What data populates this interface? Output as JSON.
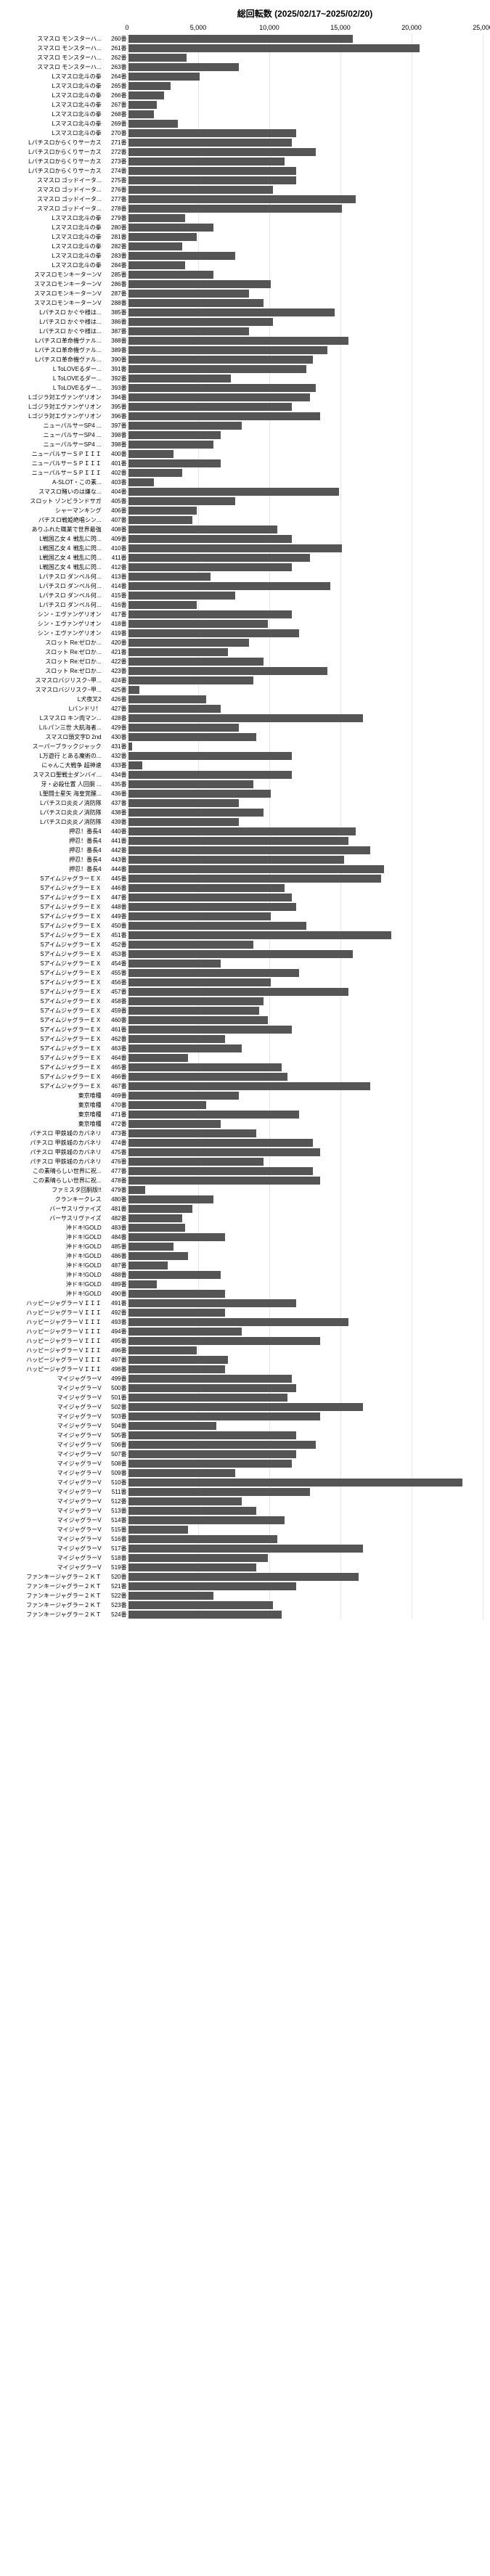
{
  "chart": {
    "type": "bar-horizontal",
    "title": "総回転数 (2025/02/17~2025/02/20)",
    "x_axis": {
      "min": 0,
      "max": 25000,
      "ticks": [
        0,
        5000,
        10000,
        15000,
        20000,
        25000
      ],
      "tick_labels": [
        "0",
        "5,000",
        "10,000",
        "15,000",
        "20,000",
        "25,000"
      ]
    },
    "bar_color": "#555555",
    "grid_color": "#e5e5e5",
    "background_color": "#ffffff",
    "label_fontsize": 8,
    "rows": [
      {
        "label": "スマスロ モンスターハ...",
        "num": "260番",
        "value": 15800
      },
      {
        "label": "スマスロ モンスターハ...",
        "num": "261番",
        "value": 20500
      },
      {
        "label": "スマスロ モンスターハ...",
        "num": "262番",
        "value": 4100
      },
      {
        "label": "スマスロ モンスターハ...",
        "num": "263番",
        "value": 7800
      },
      {
        "label": "Lスマスロ北斗の拳",
        "num": "264番",
        "value": 5000
      },
      {
        "label": "Lスマスロ北斗の拳",
        "num": "265番",
        "value": 3000
      },
      {
        "label": "Lスマスロ北斗の拳",
        "num": "266番",
        "value": 2500
      },
      {
        "label": "Lスマスロ北斗の拳",
        "num": "267番",
        "value": 2000
      },
      {
        "label": "Lスマスロ北斗の拳",
        "num": "268番",
        "value": 1800
      },
      {
        "label": "Lスマスロ北斗の拳",
        "num": "269番",
        "value": 3500
      },
      {
        "label": "Lスマスロ北斗の拳",
        "num": "270番",
        "value": 11800
      },
      {
        "label": "Lパチスロからくりサーカス",
        "num": "271番",
        "value": 11500
      },
      {
        "label": "Lパチスロからくりサーカス",
        "num": "272番",
        "value": 13200
      },
      {
        "label": "Lパチスロからくりサーカス",
        "num": "273番",
        "value": 11000
      },
      {
        "label": "Lパチスロからくりサーカス",
        "num": "274番",
        "value": 11800
      },
      {
        "label": "スマスロ ゴッドイータ...",
        "num": "275番",
        "value": 11800
      },
      {
        "label": "スマスロ ゴッドイータ...",
        "num": "276番",
        "value": 10200
      },
      {
        "label": "スマスロ ゴッドイータ...",
        "num": "277番",
        "value": 16000
      },
      {
        "label": "スマスロ ゴッドイータ...",
        "num": "278番",
        "value": 15000
      },
      {
        "label": "Lスマスロ北斗の拳",
        "num": "279番",
        "value": 4000
      },
      {
        "label": "Lスマスロ北斗の拳",
        "num": "280番",
        "value": 6000
      },
      {
        "label": "Lスマスロ北斗の拳",
        "num": "281番",
        "value": 4800
      },
      {
        "label": "Lスマスロ北斗の拳",
        "num": "282番",
        "value": 3800
      },
      {
        "label": "Lスマスロ北斗の拳",
        "num": "283番",
        "value": 7500
      },
      {
        "label": "Lスマスロ北斗の拳",
        "num": "284番",
        "value": 4000
      },
      {
        "label": "スマスロモンキーターンV",
        "num": "285番",
        "value": 6000
      },
      {
        "label": "スマスロモンキーターンV",
        "num": "286番",
        "value": 10000
      },
      {
        "label": "スマスロモンキーターンV",
        "num": "287番",
        "value": 8500
      },
      {
        "label": "スマスロモンキーターンV",
        "num": "288番",
        "value": 9500
      },
      {
        "label": "Lパチスロ かぐや様は...",
        "num": "385番",
        "value": 14500
      },
      {
        "label": "Lパチスロ かぐや様は...",
        "num": "386番",
        "value": 10200
      },
      {
        "label": "Lパチスロ かぐや様は...",
        "num": "387番",
        "value": 8500
      },
      {
        "label": "Lパチスロ革命機ヴァル...",
        "num": "388番",
        "value": 15500
      },
      {
        "label": "Lパチスロ革命機ヴァル...",
        "num": "389番",
        "value": 14000
      },
      {
        "label": "Lパチスロ革命機ヴァル...",
        "num": "390番",
        "value": 13000
      },
      {
        "label": "L ToLOVEるダー...",
        "num": "391番",
        "value": 12500
      },
      {
        "label": "L ToLOVEるダー...",
        "num": "392番",
        "value": 7200
      },
      {
        "label": "L ToLOVEるダー...",
        "num": "393番",
        "value": 13200
      },
      {
        "label": "Lゴジラ対エヴァンゲリオン",
        "num": "394番",
        "value": 12800
      },
      {
        "label": "Lゴジラ対エヴァンゲリオン",
        "num": "395番",
        "value": 11500
      },
      {
        "label": "Lゴジラ対エヴァンゲリオン",
        "num": "396番",
        "value": 13500
      },
      {
        "label": "ニューパルサーSP4 ...",
        "num": "397番",
        "value": 8000
      },
      {
        "label": "ニューパルサーSP4 ...",
        "num": "398番",
        "value": 6500
      },
      {
        "label": "ニューパルサーSP4 ...",
        "num": "398番",
        "value": 6000
      },
      {
        "label": "ニューパルサーＳＰＩＩＩ",
        "num": "400番",
        "value": 3200
      },
      {
        "label": "ニューパルサーＳＰＩＩＩ",
        "num": "401番",
        "value": 6500
      },
      {
        "label": "ニューパルサーＳＰＩＩＩ",
        "num": "402番",
        "value": 3800
      },
      {
        "label": "A-SLOT・この素...",
        "num": "403番",
        "value": 1800
      },
      {
        "label": "スマスロ賭いのは嫌な...",
        "num": "404番",
        "value": 14800
      },
      {
        "label": "スロット ゾンビランドサガ",
        "num": "405番",
        "value": 7500
      },
      {
        "label": "シャーマンキング",
        "num": "406番",
        "value": 4800
      },
      {
        "label": "パチスロ戦姫絶唱シン...",
        "num": "407番",
        "value": 4500
      },
      {
        "label": "ありふれた職業で世界最強",
        "num": "408番",
        "value": 10500
      },
      {
        "label": "L戦国乙女４ 戦乱に閃...",
        "num": "409番",
        "value": 11500
      },
      {
        "label": "L戦国乙女４ 戦乱に閃...",
        "num": "410番",
        "value": 15000
      },
      {
        "label": "L戦国乙女４ 戦乱に閃...",
        "num": "411番",
        "value": 12800
      },
      {
        "label": "L戦国乙女４ 戦乱に閃...",
        "num": "412番",
        "value": 11500
      },
      {
        "label": "Lパチスロ ダンベル何...",
        "num": "413番",
        "value": 5800
      },
      {
        "label": "Lパチスロ ダンベル何...",
        "num": "414番",
        "value": 14200
      },
      {
        "label": "Lパチスロ ダンベル何...",
        "num": "415番",
        "value": 7500
      },
      {
        "label": "Lパチスロ ダンベル何...",
        "num": "416番",
        "value": 4800
      },
      {
        "label": "シン・エヴァンゲリオン",
        "num": "417番",
        "value": 11500
      },
      {
        "label": "シン・エヴァンゲリオン",
        "num": "418番",
        "value": 9800
      },
      {
        "label": "シン・エヴァンゲリオン",
        "num": "419番",
        "value": 12000
      },
      {
        "label": "スロット Re:ゼロか...",
        "num": "420番",
        "value": 8500
      },
      {
        "label": "スロット Re:ゼロか...",
        "num": "421番",
        "value": 7000
      },
      {
        "label": "スロット Re:ゼロか...",
        "num": "422番",
        "value": 9500
      },
      {
        "label": "スロット Re:ゼロか...",
        "num": "423番",
        "value": 14000
      },
      {
        "label": "スマスロバジリスク~甲...",
        "num": "424番",
        "value": 8800
      },
      {
        "label": "スマスロバジリスク~甲...",
        "num": "425番",
        "value": 800
      },
      {
        "label": "L犬夜叉2",
        "num": "426番",
        "value": 5500
      },
      {
        "label": "Lバンドリ！",
        "num": "427番",
        "value": 6500
      },
      {
        "label": "Lスマスロ キン肉マン...",
        "num": "428番",
        "value": 16500
      },
      {
        "label": "Lルパン三世 大航海者...",
        "num": "429番",
        "value": 7800
      },
      {
        "label": "スマスロ頭文字D 2nd",
        "num": "430番",
        "value": 9000
      },
      {
        "label": "スーパーブラックジャック",
        "num": "431番",
        "value": 300
      },
      {
        "label": "L万遊行 とある魔術の...",
        "num": "432番",
        "value": 11500
      },
      {
        "label": "にゃんこ大戦争 超神速",
        "num": "433番",
        "value": 1000
      },
      {
        "label": "スマスロ聖戦士ダンバイ...",
        "num": "434番",
        "value": 11500
      },
      {
        "label": "牙・必殺仕置 人回胴 ...",
        "num": "435番",
        "value": 8800
      },
      {
        "label": "L聖闘士星矢 海皇覚醒...",
        "num": "436番",
        "value": 10000
      },
      {
        "label": "Lパチスロ炎炎ノ消防隊",
        "num": "437番",
        "value": 7800
      },
      {
        "label": "Lパチスロ炎炎ノ消防隊",
        "num": "438番",
        "value": 9500
      },
      {
        "label": "Lパチスロ炎炎ノ消防隊",
        "num": "439番",
        "value": 7800
      },
      {
        "label": "押忍！番長4",
        "num": "440番",
        "value": 16000
      },
      {
        "label": "押忍！番長4",
        "num": "441番",
        "value": 15500
      },
      {
        "label": "押忍！番長4",
        "num": "442番",
        "value": 17000
      },
      {
        "label": "押忍！番長4",
        "num": "443番",
        "value": 15200
      },
      {
        "label": "押忍！番長4",
        "num": "444番",
        "value": 18000
      },
      {
        "label": "SアイムジャグラーＥＸ",
        "num": "445番",
        "value": 17800
      },
      {
        "label": "SアイムジャグラーＥＸ",
        "num": "446番",
        "value": 11000
      },
      {
        "label": "SアイムジャグラーＥＸ",
        "num": "447番",
        "value": 11500
      },
      {
        "label": "SアイムジャグラーＥＸ",
        "num": "448番",
        "value": 11800
      },
      {
        "label": "SアイムジャグラーＥＸ",
        "num": "449番",
        "value": 10000
      },
      {
        "label": "SアイムジャグラーＥＸ",
        "num": "450番",
        "value": 12500
      },
      {
        "label": "SアイムジャグラーＥＸ",
        "num": "451番",
        "value": 18500
      },
      {
        "label": "SアイムジャグラーＥＸ",
        "num": "452番",
        "value": 8800
      },
      {
        "label": "SアイムジャグラーＥＸ",
        "num": "453番",
        "value": 15800
      },
      {
        "label": "SアイムジャグラーＥＸ",
        "num": "454番",
        "value": 6500
      },
      {
        "label": "SアイムジャグラーＥＸ",
        "num": "455番",
        "value": 12000
      },
      {
        "label": "SアイムジャグラーＥＸ",
        "num": "456番",
        "value": 10000
      },
      {
        "label": "SアイムジャグラーＥＸ",
        "num": "457番",
        "value": 15500
      },
      {
        "label": "SアイムジャグラーＥＸ",
        "num": "458番",
        "value": 9500
      },
      {
        "label": "SアイムジャグラーＥＸ",
        "num": "459番",
        "value": 9200
      },
      {
        "label": "SアイムジャグラーＥＸ",
        "num": "460番",
        "value": 9800
      },
      {
        "label": "SアイムジャグラーＥＸ",
        "num": "461番",
        "value": 11500
      },
      {
        "label": "SアイムジャグラーＥＸ",
        "num": "462番",
        "value": 6800
      },
      {
        "label": "SアイムジャグラーＥＸ",
        "num": "463番",
        "value": 8000
      },
      {
        "label": "SアイムジャグラーＥＸ",
        "num": "464番",
        "value": 4200
      },
      {
        "label": "SアイムジャグラーＥＸ",
        "num": "465番",
        "value": 10800
      },
      {
        "label": "SアイムジャグラーＥＸ",
        "num": "466番",
        "value": 11200
      },
      {
        "label": "SアイムジャグラーＥＸ",
        "num": "467番",
        "value": 17000
      },
      {
        "label": "東京喰種",
        "num": "469番",
        "value": 7800
      },
      {
        "label": "東京喰種",
        "num": "470番",
        "value": 5500
      },
      {
        "label": "東京喰種",
        "num": "471番",
        "value": 12000
      },
      {
        "label": "東京喰種",
        "num": "472番",
        "value": 6500
      },
      {
        "label": "パチスロ 甲鉄城のカバネリ",
        "num": "473番",
        "value": 9000
      },
      {
        "label": "パチスロ 甲鉄城のカバネリ",
        "num": "474番",
        "value": 13000
      },
      {
        "label": "パチスロ 甲鉄城のカバネリ",
        "num": "475番",
        "value": 13500
      },
      {
        "label": "パチスロ 甲鉄城のカバネリ",
        "num": "476番",
        "value": 9500
      },
      {
        "label": "この素晴らしい世界に祝...",
        "num": "477番",
        "value": 13000
      },
      {
        "label": "この素晴らしい世界に祝...",
        "num": "478番",
        "value": 13500
      },
      {
        "label": "ファミスタ回胴版!!",
        "num": "479番",
        "value": 1200
      },
      {
        "label": "クランキークレス",
        "num": "480番",
        "value": 6000
      },
      {
        "label": "バーサスリヴァイズ",
        "num": "481番",
        "value": 4500
      },
      {
        "label": "バーサスリヴァイズ",
        "num": "482番",
        "value": 3800
      },
      {
        "label": "沖ドキ!GOLD",
        "num": "483番",
        "value": 4000
      },
      {
        "label": "沖ドキ!GOLD",
        "num": "484番",
        "value": 6800
      },
      {
        "label": "沖ドキ!GOLD",
        "num": "485番",
        "value": 3200
      },
      {
        "label": "沖ドキ!GOLD",
        "num": "486番",
        "value": 4200
      },
      {
        "label": "沖ドキ!GOLD",
        "num": "487番",
        "value": 2800
      },
      {
        "label": "沖ドキ!GOLD",
        "num": "488番",
        "value": 6500
      },
      {
        "label": "沖ドキ!GOLD",
        "num": "489番",
        "value": 2000
      },
      {
        "label": "沖ドキ!GOLD",
        "num": "490番",
        "value": 6800
      },
      {
        "label": "ハッピージャグラーＶＩＩＩ",
        "num": "491番",
        "value": 11800
      },
      {
        "label": "ハッピージャグラーＶＩＩＩ",
        "num": "492番",
        "value": 6800
      },
      {
        "label": "ハッピージャグラーＶＩＩＩ",
        "num": "493番",
        "value": 15500
      },
      {
        "label": "ハッピージャグラーＶＩＩＩ",
        "num": "494番",
        "value": 8000
      },
      {
        "label": "ハッピージャグラーＶＩＩＩ",
        "num": "495番",
        "value": 13500
      },
      {
        "label": "ハッピージャグラーＶＩＩＩ",
        "num": "496番",
        "value": 4800
      },
      {
        "label": "ハッピージャグラーＶＩＩＩ",
        "num": "497番",
        "value": 7000
      },
      {
        "label": "ハッピージャグラーＶＩＩＩ",
        "num": "498番",
        "value": 6800
      },
      {
        "label": "マイジャグラーV",
        "num": "499番",
        "value": 11500
      },
      {
        "label": "マイジャグラーV",
        "num": "500番",
        "value": 11800
      },
      {
        "label": "マイジャグラーV",
        "num": "501番",
        "value": 11200
      },
      {
        "label": "マイジャグラーV",
        "num": "502番",
        "value": 16500
      },
      {
        "label": "マイジャグラーV",
        "num": "503番",
        "value": 13500
      },
      {
        "label": "マイジャグラーV",
        "num": "504番",
        "value": 6200
      },
      {
        "label": "マイジャグラーV",
        "num": "505番",
        "value": 11800
      },
      {
        "label": "マイジャグラーV",
        "num": "506番",
        "value": 13200
      },
      {
        "label": "マイジャグラーV",
        "num": "507番",
        "value": 11800
      },
      {
        "label": "マイジャグラーV",
        "num": "508番",
        "value": 11500
      },
      {
        "label": "マイジャグラーV",
        "num": "509番",
        "value": 7500
      },
      {
        "label": "マイジャグラーV",
        "num": "510番",
        "value": 23500
      },
      {
        "label": "マイジャグラーV",
        "num": "511番",
        "value": 12800
      },
      {
        "label": "マイジャグラーV",
        "num": "512番",
        "value": 8000
      },
      {
        "label": "マイジャグラーV",
        "num": "513番",
        "value": 9000
      },
      {
        "label": "マイジャグラーV",
        "num": "514番",
        "value": 11000
      },
      {
        "label": "マイジャグラーV",
        "num": "515番",
        "value": 4200
      },
      {
        "label": "マイジャグラーV",
        "num": "516番",
        "value": 10500
      },
      {
        "label": "マイジャグラーV",
        "num": "517番",
        "value": 16500
      },
      {
        "label": "マイジャグラーV",
        "num": "518番",
        "value": 9800
      },
      {
        "label": "マイジャグラーV",
        "num": "519番",
        "value": 9000
      },
      {
        "label": "ファンキージャグラー２ＫＴ",
        "num": "520番",
        "value": 16200
      },
      {
        "label": "ファンキージャグラー２ＫＴ",
        "num": "521番",
        "value": 11800
      },
      {
        "label": "ファンキージャグラー２ＫＴ",
        "num": "522番",
        "value": 6000
      },
      {
        "label": "ファンキージャグラー２ＫＴ",
        "num": "523番",
        "value": 10200
      },
      {
        "label": "ファンキージャグラー２ＫＴ",
        "num": "524番",
        "value": 10800
      }
    ]
  }
}
